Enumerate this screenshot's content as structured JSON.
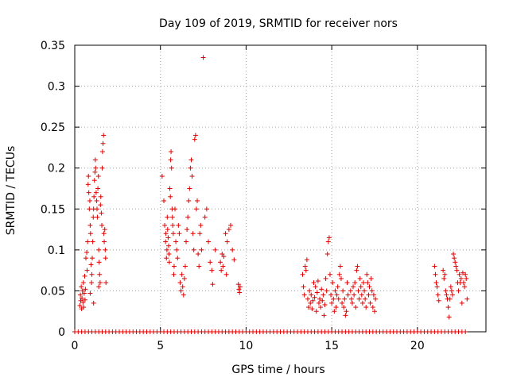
{
  "chart_data": {
    "type": "scatter",
    "title": "Day 109 of 2019, SRMTID for receiver nors",
    "xlabel": "GPS time / hours",
    "ylabel": "SRMTID / TECUs",
    "xlim": [
      0,
      24
    ],
    "ylim": [
      0,
      0.35
    ],
    "xticks": [
      0,
      5,
      10,
      15,
      20
    ],
    "yticks": [
      0,
      0.05,
      0.1,
      0.15,
      0.2,
      0.25,
      0.3,
      0.35
    ],
    "xtick_labels": [
      "0",
      "5",
      "10",
      "15",
      "20"
    ],
    "ytick_labels": [
      "0",
      "0.05",
      "0.1",
      "0.15",
      "0.2",
      "0.25",
      "0.3",
      "0.35"
    ],
    "grid": true,
    "marker": "+",
    "marker_color": "#e00000",
    "series": [
      {
        "name": "SRMTID",
        "points": [
          [
            0.3,
            0.032
          ],
          [
            0.33,
            0.045
          ],
          [
            0.35,
            0.038
          ],
          [
            0.38,
            0.055
          ],
          [
            0.4,
            0.028
          ],
          [
            0.42,
            0.041
          ],
          [
            0.45,
            0.05
          ],
          [
            0.48,
            0.036
          ],
          [
            0.5,
            0.06
          ],
          [
            0.52,
            0.03
          ],
          [
            0.55,
            0.047
          ],
          [
            0.58,
            0.068
          ],
          [
            0.62,
            0.052
          ],
          [
            0.65,
            0.09
          ],
          [
            0.7,
            0.097
          ],
          [
            0.72,
            0.075
          ],
          [
            0.75,
            0.11
          ],
          [
            0.78,
            0.18
          ],
          [
            0.8,
            0.19
          ],
          [
            0.82,
            0.17
          ],
          [
            0.85,
            0.15
          ],
          [
            0.88,
            0.16
          ],
          [
            0.9,
            0.13
          ],
          [
            0.92,
            0.12
          ],
          [
            0.95,
            0.082
          ],
          [
            0.98,
            0.06
          ],
          [
            1.0,
            0.07
          ],
          [
            1.02,
            0.09
          ],
          [
            1.05,
            0.11
          ],
          [
            1.08,
            0.14
          ],
          [
            1.1,
            0.15
          ],
          [
            1.12,
            0.165
          ],
          [
            1.15,
            0.185
          ],
          [
            1.18,
            0.195
          ],
          [
            1.2,
            0.21
          ],
          [
            1.22,
            0.2
          ],
          [
            1.25,
            0.17
          ],
          [
            1.28,
            0.16
          ],
          [
            1.3,
            0.15
          ],
          [
            1.32,
            0.14
          ],
          [
            1.35,
            0.175
          ],
          [
            1.38,
            0.19
          ],
          [
            1.4,
            0.1
          ],
          [
            1.42,
            0.085
          ],
          [
            1.45,
            0.07
          ],
          [
            1.48,
            0.06
          ],
          [
            1.5,
            0.155
          ],
          [
            1.52,
            0.165
          ],
          [
            1.55,
            0.145
          ],
          [
            1.58,
            0.13
          ],
          [
            1.6,
            0.2
          ],
          [
            1.62,
            0.22
          ],
          [
            1.65,
            0.23
          ],
          [
            1.68,
            0.24
          ],
          [
            1.7,
            0.12
          ],
          [
            1.72,
            0.11
          ],
          [
            1.75,
            0.125
          ],
          [
            1.78,
            0.1
          ],
          [
            1.8,
            0.09
          ],
          [
            1.82,
            0.06
          ],
          [
            1.1,
            0.035
          ],
          [
            0.9,
            0.047
          ],
          [
            0.6,
            0.039
          ],
          [
            1.4,
            0.055
          ],
          [
            5.1,
            0.19
          ],
          [
            5.2,
            0.16
          ],
          [
            5.25,
            0.13
          ],
          [
            5.3,
            0.11
          ],
          [
            5.32,
            0.12
          ],
          [
            5.35,
            0.09
          ],
          [
            5.38,
            0.1
          ],
          [
            5.4,
            0.14
          ],
          [
            5.42,
            0.125
          ],
          [
            5.45,
            0.115
          ],
          [
            5.48,
            0.105
          ],
          [
            5.5,
            0.095
          ],
          [
            5.52,
            0.085
          ],
          [
            5.55,
            0.175
          ],
          [
            5.58,
            0.165
          ],
          [
            5.6,
            0.21
          ],
          [
            5.62,
            0.22
          ],
          [
            5.65,
            0.2
          ],
          [
            5.68,
            0.15
          ],
          [
            5.7,
            0.14
          ],
          [
            5.72,
            0.13
          ],
          [
            5.75,
            0.12
          ],
          [
            5.78,
            0.07
          ],
          [
            5.8,
            0.08
          ],
          [
            5.85,
            0.15
          ],
          [
            5.9,
            0.11
          ],
          [
            5.95,
            0.1
          ],
          [
            6.0,
            0.09
          ],
          [
            6.05,
            0.13
          ],
          [
            6.1,
            0.12
          ],
          [
            6.15,
            0.06
          ],
          [
            6.2,
            0.05
          ],
          [
            6.25,
            0.07
          ],
          [
            6.3,
            0.055
          ],
          [
            6.35,
            0.045
          ],
          [
            6.4,
            0.065
          ],
          [
            6.45,
            0.08
          ],
          [
            6.5,
            0.11
          ],
          [
            6.55,
            0.125
          ],
          [
            6.6,
            0.14
          ],
          [
            6.65,
            0.16
          ],
          [
            6.7,
            0.175
          ],
          [
            6.75,
            0.2
          ],
          [
            6.8,
            0.21
          ],
          [
            6.85,
            0.19
          ],
          [
            6.9,
            0.12
          ],
          [
            6.95,
            0.1
          ],
          [
            7.0,
            0.235
          ],
          [
            7.05,
            0.24
          ],
          [
            7.1,
            0.15
          ],
          [
            7.15,
            0.16
          ],
          [
            7.2,
            0.095
          ],
          [
            7.25,
            0.08
          ],
          [
            7.3,
            0.12
          ],
          [
            7.35,
            0.13
          ],
          [
            7.4,
            0.1
          ],
          [
            7.5,
            0.335
          ],
          [
            7.6,
            0.14
          ],
          [
            7.7,
            0.15
          ],
          [
            7.8,
            0.11
          ],
          [
            7.9,
            0.085
          ],
          [
            8.0,
            0.075
          ],
          [
            8.05,
            0.058
          ],
          [
            8.2,
            0.1
          ],
          [
            8.5,
            0.085
          ],
          [
            8.55,
            0.075
          ],
          [
            8.6,
            0.095
          ],
          [
            8.65,
            0.08
          ],
          [
            8.7,
            0.092
          ],
          [
            8.8,
            0.12
          ],
          [
            8.85,
            0.07
          ],
          [
            8.9,
            0.11
          ],
          [
            9.0,
            0.125
          ],
          [
            9.1,
            0.13
          ],
          [
            9.2,
            0.1
          ],
          [
            9.3,
            0.088
          ],
          [
            9.55,
            0.058
          ],
          [
            9.58,
            0.052
          ],
          [
            9.62,
            0.048
          ],
          [
            9.65,
            0.055
          ],
          [
            13.3,
            0.07
          ],
          [
            13.35,
            0.055
          ],
          [
            13.4,
            0.045
          ],
          [
            13.45,
            0.08
          ],
          [
            13.5,
            0.075
          ],
          [
            13.55,
            0.088
          ],
          [
            13.6,
            0.04
          ],
          [
            13.65,
            0.03
          ],
          [
            13.7,
            0.05
          ],
          [
            13.75,
            0.035
          ],
          [
            13.8,
            0.045
          ],
          [
            13.85,
            0.028
          ],
          [
            13.9,
            0.038
          ],
          [
            13.95,
            0.06
          ],
          [
            14.0,
            0.042
          ],
          [
            14.05,
            0.055
          ],
          [
            14.1,
            0.025
          ],
          [
            14.15,
            0.048
          ],
          [
            14.2,
            0.062
          ],
          [
            14.25,
            0.035
          ],
          [
            14.3,
            0.04
          ],
          [
            14.35,
            0.03
          ],
          [
            14.4,
            0.052
          ],
          [
            14.45,
            0.038
          ],
          [
            14.5,
            0.045
          ],
          [
            14.55,
            0.02
          ],
          [
            14.6,
            0.033
          ],
          [
            14.65,
            0.065
          ],
          [
            14.7,
            0.05
          ],
          [
            14.75,
            0.095
          ],
          [
            14.8,
            0.11
          ],
          [
            14.85,
            0.115
          ],
          [
            14.9,
            0.07
          ],
          [
            14.95,
            0.045
          ],
          [
            15.0,
            0.035
          ],
          [
            15.05,
            0.06
          ],
          [
            15.1,
            0.04
          ],
          [
            15.15,
            0.025
          ],
          [
            15.2,
            0.05
          ],
          [
            15.25,
            0.03
          ],
          [
            15.3,
            0.045
          ],
          [
            15.35,
            0.055
          ],
          [
            15.4,
            0.04
          ],
          [
            15.45,
            0.07
          ],
          [
            15.5,
            0.08
          ],
          [
            15.55,
            0.065
          ],
          [
            15.6,
            0.035
          ],
          [
            15.65,
            0.05
          ],
          [
            15.7,
            0.03
          ],
          [
            15.75,
            0.04
          ],
          [
            15.8,
            0.02
          ],
          [
            15.85,
            0.025
          ],
          [
            15.9,
            0.06
          ],
          [
            15.95,
            0.045
          ],
          [
            16.1,
            0.05
          ],
          [
            16.15,
            0.04
          ],
          [
            16.2,
            0.035
          ],
          [
            16.25,
            0.055
          ],
          [
            16.3,
            0.045
          ],
          [
            16.35,
            0.06
          ],
          [
            16.4,
            0.03
          ],
          [
            16.45,
            0.075
          ],
          [
            16.5,
            0.08
          ],
          [
            16.55,
            0.05
          ],
          [
            16.6,
            0.04
          ],
          [
            16.65,
            0.065
          ],
          [
            16.7,
            0.055
          ],
          [
            16.75,
            0.045
          ],
          [
            16.8,
            0.035
          ],
          [
            16.85,
            0.06
          ],
          [
            16.9,
            0.05
          ],
          [
            16.95,
            0.04
          ],
          [
            17.0,
            0.03
          ],
          [
            17.05,
            0.07
          ],
          [
            17.1,
            0.06
          ],
          [
            17.15,
            0.045
          ],
          [
            17.2,
            0.055
          ],
          [
            17.25,
            0.035
          ],
          [
            17.3,
            0.065
          ],
          [
            17.35,
            0.05
          ],
          [
            17.4,
            0.03
          ],
          [
            17.45,
            0.045
          ],
          [
            17.5,
            0.025
          ],
          [
            17.55,
            0.04
          ],
          [
            21.0,
            0.08
          ],
          [
            21.05,
            0.07
          ],
          [
            21.1,
            0.06
          ],
          [
            21.15,
            0.055
          ],
          [
            21.2,
            0.045
          ],
          [
            21.25,
            0.038
          ],
          [
            21.5,
            0.075
          ],
          [
            21.55,
            0.065
          ],
          [
            21.6,
            0.07
          ],
          [
            21.65,
            0.05
          ],
          [
            21.7,
            0.045
          ],
          [
            21.75,
            0.04
          ],
          [
            21.8,
            0.03
          ],
          [
            21.85,
            0.018
          ],
          [
            21.9,
            0.04
          ],
          [
            21.95,
            0.055
          ],
          [
            22.0,
            0.05
          ],
          [
            22.05,
            0.045
          ],
          [
            22.1,
            0.095
          ],
          [
            22.15,
            0.09
          ],
          [
            22.2,
            0.085
          ],
          [
            22.25,
            0.08
          ],
          [
            22.3,
            0.075
          ],
          [
            22.35,
            0.06
          ],
          [
            22.4,
            0.05
          ],
          [
            22.45,
            0.07
          ],
          [
            22.5,
            0.06
          ],
          [
            22.55,
            0.065
          ],
          [
            22.6,
            0.035
          ],
          [
            22.65,
            0.072
          ],
          [
            22.7,
            0.06
          ],
          [
            22.75,
            0.055
          ],
          [
            22.8,
            0.07
          ],
          [
            22.85,
            0.065
          ],
          [
            22.9,
            0.04
          ]
        ],
        "zero_points_x": [
          0.0,
          0.2,
          0.4,
          0.6,
          0.8,
          1.0,
          1.2,
          1.4,
          1.6,
          1.8,
          2.0,
          2.2,
          2.4,
          2.6,
          2.8,
          3.0,
          3.2,
          3.4,
          3.6,
          3.8,
          4.0,
          4.2,
          4.4,
          4.6,
          4.8,
          5.0,
          5.2,
          5.4,
          5.6,
          5.8,
          6.0,
          6.2,
          6.4,
          6.6,
          6.8,
          7.0,
          7.2,
          7.4,
          7.6,
          7.8,
          8.0,
          8.2,
          8.4,
          8.6,
          8.8,
          9.0,
          9.2,
          9.4,
          9.6,
          9.8,
          10.0,
          10.2,
          10.4,
          10.6,
          10.8,
          11.0,
          11.2,
          11.4,
          11.6,
          11.8,
          12.0,
          12.2,
          12.4,
          12.6,
          12.8,
          13.0,
          13.2,
          13.4,
          13.6,
          13.8,
          14.0,
          14.2,
          14.4,
          14.6,
          14.8,
          15.0,
          15.2,
          15.4,
          15.6,
          15.8,
          16.0,
          16.2,
          16.4,
          16.6,
          16.8,
          17.0,
          17.2,
          17.4,
          17.6,
          17.8,
          18.0,
          18.2,
          18.4,
          18.6,
          18.8,
          19.0,
          19.2,
          19.4,
          19.6,
          19.8,
          20.0,
          20.2,
          20.4,
          20.6,
          20.8,
          21.0,
          21.2,
          21.4,
          21.6,
          21.8,
          22.0,
          22.2,
          22.4,
          22.6,
          22.8
        ]
      }
    ]
  }
}
